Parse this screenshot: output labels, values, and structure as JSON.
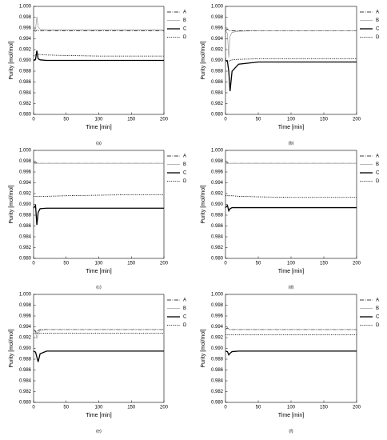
{
  "chart_data": [
    {
      "type": "line",
      "caption": "(a)",
      "xlabel": "Time [min]",
      "ylabel": "Purity [mol/mol]",
      "x": [
        0,
        3,
        5,
        7,
        10,
        20,
        50,
        100,
        150,
        200
      ],
      "xlim": [
        0,
        200
      ],
      "xticks": [
        0,
        50,
        100,
        150,
        200
      ],
      "ylim": [
        0.98,
        1.0
      ],
      "yticks": [
        {
          "value": 0.98,
          "label": "0.980"
        },
        0.982,
        0.984,
        0.986,
        0.988,
        {
          "value": 0.99,
          "label": "0.990"
        },
        0.992,
        0.994,
        0.996,
        0.998,
        {
          "value": 1.0,
          "label": "1.000"
        }
      ],
      "series": [
        {
          "name": "A",
          "color": "#000000",
          "style": "dashdot",
          "values": [
            0.9955,
            0.9954,
            0.9956,
            0.9955,
            0.9955,
            0.9955,
            0.9955,
            0.9955,
            0.9955,
            0.9955
          ]
        },
        {
          "name": "B",
          "color": "#888888",
          "style": "solid",
          "values": [
            0.9957,
            0.9958,
            0.9981,
            0.9962,
            0.9958,
            0.9957,
            0.9957,
            0.9957,
            0.9957,
            0.9957
          ]
        },
        {
          "name": "C",
          "color": "#000000",
          "style": "thick",
          "values": [
            0.99,
            0.9902,
            0.9918,
            0.9903,
            0.9901,
            0.99,
            0.99,
            0.99,
            0.99,
            0.99
          ]
        },
        {
          "name": "D",
          "color": "#000000",
          "style": "dotted",
          "values": [
            0.9908,
            0.991,
            0.9912,
            0.9911,
            0.9911,
            0.991,
            0.9909,
            0.9908,
            0.9908,
            0.9908
          ]
        }
      ]
    },
    {
      "type": "line",
      "caption": "(b)",
      "xlabel": "Time [min]",
      "ylabel": "Purity [mol/mol]",
      "x": [
        0,
        3,
        5,
        7,
        10,
        20,
        50,
        100,
        150,
        200
      ],
      "xlim": [
        0,
        200
      ],
      "xticks": [
        0,
        50,
        100,
        150,
        200
      ],
      "ylim": [
        0.98,
        1.0
      ],
      "yticks": [
        {
          "value": 0.98,
          "label": "0.980"
        },
        0.982,
        0.984,
        0.986,
        0.988,
        {
          "value": 0.99,
          "label": "0.990"
        },
        0.992,
        0.994,
        0.996,
        0.998,
        {
          "value": 1.0,
          "label": "1.000"
        }
      ],
      "series": [
        {
          "name": "A",
          "color": "#000000",
          "style": "dashdot",
          "values": [
            0.9955,
            0.9958,
            0.9956,
            0.9955,
            0.9955,
            0.9955,
            0.9955,
            0.9955,
            0.9955,
            0.9955
          ]
        },
        {
          "name": "B",
          "color": "#888888",
          "style": "solid",
          "values": [
            0.9955,
            0.995,
            0.9905,
            0.9945,
            0.9952,
            0.9954,
            0.9955,
            0.9955,
            0.9955,
            0.9955
          ]
        },
        {
          "name": "C",
          "color": "#000000",
          "style": "thick",
          "values": [
            0.99,
            0.9898,
            0.988,
            0.9843,
            0.988,
            0.9893,
            0.9897,
            0.9897,
            0.9897,
            0.9897
          ]
        },
        {
          "name": "D",
          "color": "#000000",
          "style": "dotted",
          "values": [
            0.9903,
            0.99,
            0.9899,
            0.99,
            0.9901,
            0.9902,
            0.9903,
            0.9903,
            0.9903,
            0.9903
          ]
        }
      ]
    },
    {
      "type": "line",
      "caption": "(c)",
      "xlabel": "Time [min]",
      "ylabel": "Purity [mol/mol]",
      "x": [
        0,
        3,
        5,
        7,
        10,
        20,
        50,
        100,
        150,
        200
      ],
      "xlim": [
        0,
        200
      ],
      "xticks": [
        0,
        50,
        100,
        150,
        200
      ],
      "ylim": [
        0.98,
        1.0
      ],
      "yticks": [
        {
          "value": 0.98,
          "label": "0.980"
        },
        0.982,
        0.984,
        0.986,
        0.988,
        {
          "value": 0.99,
          "label": "0.990"
        },
        0.992,
        0.994,
        0.996,
        0.998,
        {
          "value": 1.0,
          "label": "1.000"
        }
      ],
      "series": [
        {
          "name": "A",
          "color": "#000000",
          "style": "dashdot",
          "values": [
            0.9976,
            0.9978,
            0.9977,
            0.9976,
            0.9976,
            0.9976,
            0.9976,
            0.9976,
            0.9976,
            0.9976
          ]
        },
        {
          "name": "B",
          "color": "#888888",
          "style": "solid",
          "values": [
            0.9976,
            0.9976,
            0.9976,
            0.9976,
            0.9976,
            0.9976,
            0.9976,
            0.9976,
            0.9976,
            0.9976
          ]
        },
        {
          "name": "C",
          "color": "#000000",
          "style": "thick",
          "values": [
            0.9893,
            0.9898,
            0.9862,
            0.9885,
            0.9892,
            0.9893,
            0.9893,
            0.9893,
            0.9893,
            0.9893
          ]
        },
        {
          "name": "D",
          "color": "#000000",
          "style": "dotted",
          "values": [
            0.9915,
            0.9915,
            0.9915,
            0.9915,
            0.9915,
            0.9915,
            0.9916,
            0.9917,
            0.9918,
            0.9918
          ]
        }
      ]
    },
    {
      "type": "line",
      "caption": "(d)",
      "xlabel": "Time [min]",
      "ylabel": "Purity [mol/mol]",
      "x": [
        0,
        3,
        5,
        7,
        10,
        20,
        50,
        100,
        150,
        200
      ],
      "xlim": [
        0,
        200
      ],
      "xticks": [
        0,
        50,
        100,
        150,
        200
      ],
      "ylim": [
        0.98,
        1.0
      ],
      "yticks": [
        {
          "value": 0.98,
          "label": "0.980"
        },
        0.982,
        0.984,
        0.986,
        0.988,
        {
          "value": 0.99,
          "label": "0.990"
        },
        0.992,
        0.994,
        0.996,
        0.998,
        {
          "value": 1.0,
          "label": "1.000"
        }
      ],
      "series": [
        {
          "name": "A",
          "color": "#000000",
          "style": "dashdot",
          "values": [
            0.9976,
            0.9977,
            0.9976,
            0.9976,
            0.9976,
            0.9976,
            0.9976,
            0.9976,
            0.9976,
            0.9976
          ]
        },
        {
          "name": "B",
          "color": "#888888",
          "style": "solid",
          "values": [
            0.9976,
            0.9976,
            0.9976,
            0.9976,
            0.9976,
            0.9976,
            0.9976,
            0.9976,
            0.9976,
            0.9976
          ]
        },
        {
          "name": "C",
          "color": "#000000",
          "style": "thick",
          "values": [
            0.9894,
            0.9898,
            0.9888,
            0.9892,
            0.9894,
            0.9894,
            0.9894,
            0.9894,
            0.9894,
            0.9894
          ]
        },
        {
          "name": "D",
          "color": "#000000",
          "style": "dotted",
          "values": [
            0.9916,
            0.9916,
            0.9916,
            0.9916,
            0.9916,
            0.9915,
            0.9914,
            0.9913,
            0.9913,
            0.9913
          ]
        }
      ]
    },
    {
      "type": "line",
      "caption": "(e)",
      "xlabel": "Time [min]",
      "ylabel": "Purity [mol/mol]",
      "x": [
        0,
        3,
        5,
        7,
        10,
        20,
        50,
        100,
        150,
        200
      ],
      "xlim": [
        0,
        200
      ],
      "xticks": [
        0,
        50,
        100,
        150,
        200
      ],
      "ylim": [
        0.98,
        1.0
      ],
      "yticks": [
        {
          "value": 0.98,
          "label": "0.980"
        },
        0.982,
        0.984,
        0.986,
        0.988,
        {
          "value": 0.99,
          "label": "0.990"
        },
        0.992,
        0.994,
        0.996,
        0.998,
        {
          "value": 1.0,
          "label": "1.000"
        }
      ],
      "series": [
        {
          "name": "A",
          "color": "#000000",
          "style": "dashdot",
          "values": [
            0.9935,
            0.9932,
            0.9928,
            0.9933,
            0.9935,
            0.9935,
            0.9935,
            0.9935,
            0.9935,
            0.9935
          ]
        },
        {
          "name": "B",
          "color": "#888888",
          "style": "solid",
          "values": [
            0.9935,
            0.993,
            0.9918,
            0.9928,
            0.9933,
            0.9935,
            0.9935,
            0.9935,
            0.9935,
            0.9935
          ]
        },
        {
          "name": "C",
          "color": "#000000",
          "style": "thick",
          "values": [
            0.9895,
            0.9893,
            0.9884,
            0.9875,
            0.989,
            0.9895,
            0.9895,
            0.9895,
            0.9895,
            0.9895
          ]
        },
        {
          "name": "D",
          "color": "#000000",
          "style": "dotted",
          "values": [
            0.9928,
            0.9928,
            0.9928,
            0.9928,
            0.9928,
            0.9928,
            0.9928,
            0.9928,
            0.9928,
            0.9928
          ]
        }
      ]
    },
    {
      "type": "line",
      "caption": "(f)",
      "xlabel": "Time [min]",
      "ylabel": "Purity [mol/mol]",
      "x": [
        0,
        3,
        5,
        7,
        10,
        20,
        50,
        100,
        150,
        200
      ],
      "xlim": [
        0,
        200
      ],
      "xticks": [
        0,
        50,
        100,
        150,
        200
      ],
      "ylim": [
        0.98,
        1.0
      ],
      "yticks": [
        {
          "value": 0.98,
          "label": "0.980"
        },
        0.982,
        0.984,
        0.986,
        0.988,
        {
          "value": 0.99,
          "label": "0.990"
        },
        0.992,
        0.994,
        0.996,
        0.998,
        {
          "value": 1.0,
          "label": "1.000"
        }
      ],
      "series": [
        {
          "name": "A",
          "color": "#000000",
          "style": "dashdot",
          "values": [
            0.9935,
            0.9938,
            0.9936,
            0.9935,
            0.9935,
            0.9935,
            0.9935,
            0.9935,
            0.9935,
            0.9935
          ]
        },
        {
          "name": "B",
          "color": "#888888",
          "style": "solid",
          "values": [
            0.9935,
            0.9937,
            0.9936,
            0.9935,
            0.9935,
            0.9935,
            0.9935,
            0.9935,
            0.9935,
            0.9935
          ]
        },
        {
          "name": "C",
          "color": "#000000",
          "style": "thick",
          "values": [
            0.9895,
            0.9894,
            0.9888,
            0.9891,
            0.9894,
            0.9895,
            0.9895,
            0.9895,
            0.9895,
            0.9895
          ]
        },
        {
          "name": "D",
          "color": "#000000",
          "style": "dotted",
          "values": [
            0.9925,
            0.9925,
            0.9925,
            0.9925,
            0.9925,
            0.9925,
            0.9925,
            0.9925,
            0.9925,
            0.9925
          ]
        }
      ]
    }
  ]
}
